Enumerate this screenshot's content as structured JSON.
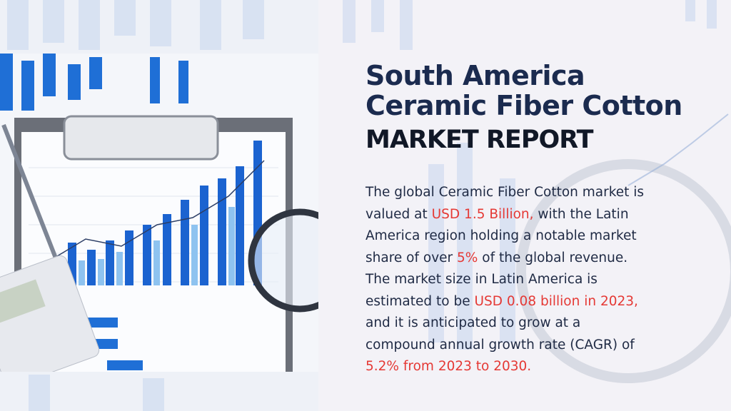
{
  "title": {
    "line1": "South America",
    "line2": "Ceramic Fiber Cotton",
    "line3": "MARKET REPORT"
  },
  "description": {
    "lines": [
      [
        {
          "text": "The global Ceramic Fiber Cotton market is",
          "highlight": false
        }
      ],
      [
        {
          "text": "valued at ",
          "highlight": false
        },
        {
          "text": "USD 1.5 Billion,",
          "highlight": true
        },
        {
          "text": " with the Latin",
          "highlight": false
        }
      ],
      [
        {
          "text": "America region holding a notable market",
          "highlight": false
        }
      ],
      [
        {
          "text": "share of over ",
          "highlight": false
        },
        {
          "text": "5%",
          "highlight": true
        },
        {
          "text": " of the global revenue.",
          "highlight": false
        }
      ],
      [
        {
          "text": "The market size in Latin America is",
          "highlight": false
        }
      ],
      [
        {
          "text": "estimated to be ",
          "highlight": false
        },
        {
          "text": "USD 0.08 billion in 2023,",
          "highlight": true
        }
      ],
      [
        {
          "text": "and it is anticipated to grow at a",
          "highlight": false
        }
      ],
      [
        {
          "text": "compound annual growth rate (CAGR) of",
          "highlight": false
        }
      ],
      [
        {
          "text": "5.2% from 2023 to 2030.",
          "highlight": true
        }
      ]
    ]
  }
}
